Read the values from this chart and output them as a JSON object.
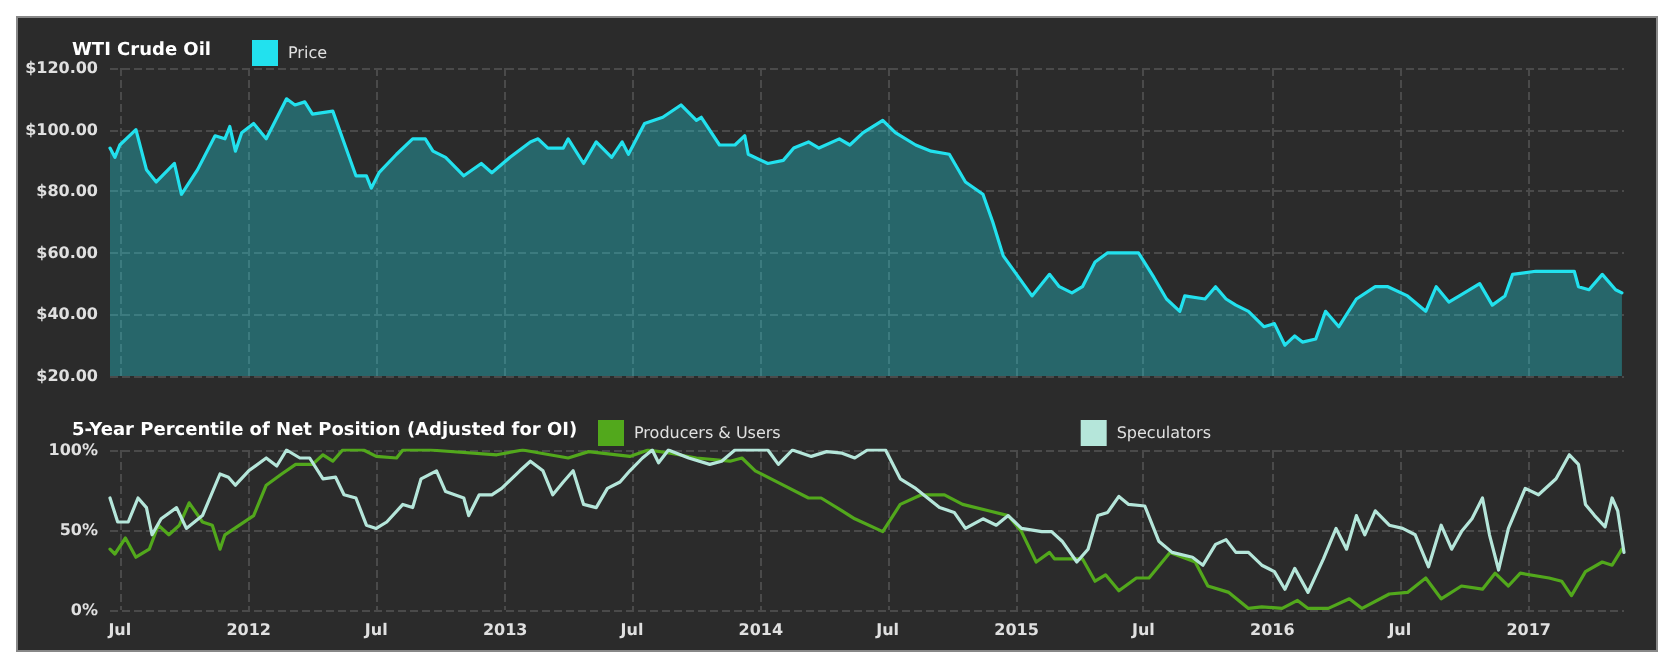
{
  "chart_data": [
    {
      "type": "area",
      "title": "WTI Crude Oil",
      "legend": "top left",
      "grid": true,
      "marker": "none",
      "tick_labels": "y",
      "xlim": [
        "2011-06-17",
        "2017-05-17"
      ],
      "xticks": [
        {
          "value": "2011-07-01",
          "label": null
        },
        {
          "value": "2012-01-01",
          "label": null
        },
        {
          "value": "2012-07-01",
          "label": null
        },
        {
          "value": "2013-01-01",
          "label": null
        },
        {
          "value": "2013-07-01",
          "label": null
        },
        {
          "value": "2014-01-01",
          "label": null
        },
        {
          "value": "2014-07-01",
          "label": null
        },
        {
          "value": "2015-01-01",
          "label": null
        },
        {
          "value": "2015-07-01",
          "label": null
        },
        {
          "value": "2016-01-01",
          "label": null
        },
        {
          "value": "2016-07-01",
          "label": null
        },
        {
          "value": "2017-01-01",
          "label": null
        }
      ],
      "ylim": [
        20,
        120
      ],
      "yticks": [
        {
          "value": 20,
          "label": "$20.00"
        },
        {
          "value": 40,
          "label": "$40.00"
        },
        {
          "value": 60,
          "label": "$60.00"
        },
        {
          "value": 80,
          "label": "$80.00"
        },
        {
          "value": 100,
          "label": "$100.00"
        },
        {
          "value": 120,
          "label": "$120.00"
        }
      ],
      "series": [
        {
          "name": "Price",
          "color": "#22e1ee",
          "x": [
            "2011-06-17",
            "2011-06-24",
            "2011-07-01",
            "2011-07-24",
            "2011-08-08",
            "2011-08-22",
            "2011-09-17",
            "2011-09-27",
            "2011-10-20",
            "2011-11-14",
            "2011-11-28",
            "2011-12-05",
            "2011-12-13",
            "2011-12-22",
            "2012-01-08",
            "2012-01-26",
            "2012-02-24",
            "2012-03-07",
            "2012-03-21",
            "2012-04-01",
            "2012-04-30",
            "2012-05-22",
            "2012-06-02",
            "2012-06-17",
            "2012-06-24",
            "2012-07-05",
            "2012-07-30",
            "2012-08-22",
            "2012-09-09",
            "2012-09-20",
            "2012-10-08",
            "2012-11-03",
            "2012-11-28",
            "2012-12-13",
            "2013-01-08",
            "2013-02-06",
            "2013-02-17",
            "2013-03-03",
            "2013-03-25",
            "2013-04-01",
            "2013-04-23",
            "2013-05-11",
            "2013-06-02",
            "2013-06-17",
            "2013-06-26",
            "2013-07-19",
            "2013-08-14",
            "2013-09-09",
            "2013-10-01",
            "2013-10-08",
            "2013-11-03",
            "2013-11-25",
            "2013-12-09",
            "2013-12-14",
            "2014-01-11",
            "2014-02-02",
            "2014-02-17",
            "2014-03-10",
            "2014-03-25",
            "2014-04-23",
            "2014-05-08",
            "2014-05-27",
            "2014-06-24",
            "2014-07-12",
            "2014-08-10",
            "2014-09-01",
            "2014-09-27",
            "2014-10-20",
            "2014-11-14",
            "2014-11-28",
            "2014-12-13",
            "2015-01-01",
            "2015-01-23",
            "2015-02-17",
            "2015-03-03",
            "2015-03-21",
            "2015-04-05",
            "2015-04-23",
            "2015-05-11",
            "2015-06-24",
            "2015-07-16",
            "2015-08-03",
            "2015-08-22",
            "2015-08-29",
            "2015-09-27",
            "2015-10-12",
            "2015-10-27",
            "2015-11-10",
            "2015-11-28",
            "2015-12-20",
            "2016-01-04",
            "2016-01-19",
            "2016-02-02",
            "2016-02-13",
            "2016-03-03",
            "2016-03-17",
            "2016-04-05",
            "2016-04-30",
            "2016-05-27",
            "2016-06-14",
            "2016-07-12",
            "2016-08-07",
            "2016-08-22",
            "2016-09-09",
            "2016-09-24",
            "2016-10-23",
            "2016-11-10",
            "2016-11-28",
            "2016-12-09",
            "2017-01-11",
            "2017-02-13",
            "2017-03-07",
            "2017-03-13",
            "2017-03-28",
            "2017-04-16",
            "2017-05-05",
            "2017-05-14"
          ],
          "values": [
            94,
            91,
            95,
            100,
            87,
            83,
            89,
            79,
            87,
            98,
            97,
            101,
            93,
            99,
            102,
            97,
            110,
            108,
            109,
            105,
            106,
            92,
            85,
            85,
            81,
            86,
            92,
            97,
            97,
            93,
            91,
            85,
            89,
            86,
            91,
            96,
            97,
            94,
            94,
            97,
            89,
            96,
            91,
            96,
            92,
            102,
            104,
            108,
            103,
            104,
            95,
            95,
            98,
            92,
            89,
            90,
            94,
            96,
            94,
            97,
            95,
            99,
            103,
            99,
            95,
            93,
            92,
            83,
            79,
            70,
            59,
            53,
            46,
            53,
            49,
            47,
            49,
            57,
            60,
            60,
            52,
            45,
            41,
            46,
            45,
            49,
            45,
            43,
            41,
            36,
            37,
            30,
            33,
            31,
            32,
            41,
            36,
            45,
            49,
            49,
            46,
            41,
            49,
            44,
            46,
            50,
            43,
            46,
            53,
            54,
            54,
            54,
            49,
            48,
            53,
            48,
            47
          ]
        }
      ]
    },
    {
      "type": "line",
      "title": "5-Year Percentile of Net Position (Adjusted for OI)",
      "legend": "top left",
      "grid": true,
      "marker": "none",
      "xlim": [
        "2011-06-17",
        "2017-05-17"
      ],
      "xticks": [
        {
          "value": "2011-07-01",
          "label": "Jul"
        },
        {
          "value": "2012-01-01",
          "label": "2012"
        },
        {
          "value": "2012-07-01",
          "label": "Jul"
        },
        {
          "value": "2013-01-01",
          "label": "2013"
        },
        {
          "value": "2013-07-01",
          "label": "Jul"
        },
        {
          "value": "2014-01-01",
          "label": "2014"
        },
        {
          "value": "2014-07-01",
          "label": "Jul"
        },
        {
          "value": "2015-01-01",
          "label": "2015"
        },
        {
          "value": "2015-07-01",
          "label": "Jul"
        },
        {
          "value": "2016-01-01",
          "label": "2016"
        },
        {
          "value": "2016-07-01",
          "label": "Jul"
        },
        {
          "value": "2017-01-01",
          "label": "2017"
        }
      ],
      "ylim": [
        0,
        100
      ],
      "yticks": [
        {
          "value": 0,
          "label": "0%"
        },
        {
          "value": 50,
          "label": "50%"
        },
        {
          "value": 100,
          "label": "100%"
        }
      ],
      "series": [
        {
          "name": "Producers & Users",
          "color": "#52a81c",
          "x": [
            "2011-06-17",
            "2011-06-24",
            "2011-07-09",
            "2011-07-24",
            "2011-08-12",
            "2011-08-25",
            "2011-09-09",
            "2011-09-24",
            "2011-10-08",
            "2011-10-27",
            "2011-11-10",
            "2011-11-21",
            "2011-11-28",
            "2011-12-22",
            "2012-01-08",
            "2012-01-26",
            "2012-02-17",
            "2012-03-08",
            "2012-04-01",
            "2012-04-16",
            "2012-04-30",
            "2012-05-14",
            "2012-06-13",
            "2012-07-01",
            "2012-07-30",
            "2012-08-08",
            "2012-09-16",
            "2012-12-20",
            "2013-01-26",
            "2013-04-01",
            "2013-04-30",
            "2013-06-28",
            "2013-07-24",
            "2013-08-25",
            "2013-10-01",
            "2013-11-18",
            "2013-12-05",
            "2013-12-24",
            "2014-02-02",
            "2014-03-10",
            "2014-03-28",
            "2014-04-27",
            "2014-05-15",
            "2014-06-24",
            "2014-07-19",
            "2014-08-18",
            "2014-09-20",
            "2014-10-16",
            "2014-11-22",
            "2014-12-20",
            "2015-01-08",
            "2015-01-29",
            "2015-02-17",
            "2015-02-24",
            "2015-04-05",
            "2015-04-23",
            "2015-05-08",
            "2015-05-27",
            "2015-06-21",
            "2015-07-09",
            "2015-08-08",
            "2015-09-13",
            "2015-10-01",
            "2015-10-31",
            "2015-11-28",
            "2015-12-17",
            "2016-01-15",
            "2016-02-06",
            "2016-02-21",
            "2016-03-21",
            "2016-04-20",
            "2016-05-08",
            "2016-06-16",
            "2016-07-12",
            "2016-08-07",
            "2016-08-29",
            "2016-09-27",
            "2016-10-27",
            "2016-11-14",
            "2016-12-03",
            "2016-12-20",
            "2017-01-30",
            "2017-02-17",
            "2017-03-03",
            "2017-03-23",
            "2017-04-16",
            "2017-04-30",
            "2017-05-14"
          ],
          "values": [
            38,
            35,
            45,
            33,
            38,
            53,
            47,
            53,
            67,
            55,
            53,
            38,
            47,
            54,
            59,
            78,
            85,
            91,
            91,
            97,
            93,
            100,
            100,
            96,
            95,
            100,
            100,
            97,
            100,
            95,
            99,
            96,
            100,
            98,
            95,
            93,
            95,
            87,
            78,
            70,
            70,
            62,
            57,
            49,
            66,
            72,
            72,
            66,
            62,
            59,
            49,
            30,
            36,
            32,
            32,
            18,
            22,
            12,
            20,
            20,
            36,
            30,
            15,
            11,
            1,
            2,
            1,
            6,
            1,
            1,
            7,
            1,
            10,
            11,
            20,
            7,
            15,
            13,
            23,
            15,
            23,
            20,
            18,
            9,
            24,
            30,
            28,
            38
          ]
        },
        {
          "name": "Speculators",
          "color": "#b5e6da",
          "x": [
            "2011-06-17",
            "2011-06-28",
            "2011-07-13",
            "2011-07-27",
            "2011-08-08",
            "2011-08-16",
            "2011-08-29",
            "2011-09-20",
            "2011-10-04",
            "2011-10-27",
            "2011-11-21",
            "2011-12-03",
            "2011-12-13",
            "2012-01-01",
            "2012-01-26",
            "2012-02-10",
            "2012-02-24",
            "2012-03-14",
            "2012-03-28",
            "2012-04-16",
            "2012-05-04",
            "2012-05-16",
            "2012-06-02",
            "2012-06-17",
            "2012-07-01",
            "2012-07-16",
            "2012-08-08",
            "2012-08-22",
            "2012-09-03",
            "2012-09-25",
            "2012-10-08",
            "2012-11-03",
            "2012-11-10",
            "2012-11-25",
            "2012-12-13",
            "2012-12-27",
            "2013-01-22",
            "2013-02-06",
            "2013-02-24",
            "2013-03-10",
            "2013-03-25",
            "2013-04-08",
            "2013-04-23",
            "2013-05-11",
            "2013-05-27",
            "2013-06-14",
            "2013-06-28",
            "2013-07-16",
            "2013-07-30",
            "2013-08-08",
            "2013-08-22",
            "2013-09-20",
            "2013-10-20",
            "2013-11-06",
            "2013-11-25",
            "2014-01-11",
            "2014-01-26",
            "2014-02-15",
            "2014-03-14",
            "2014-04-05",
            "2014-04-27",
            "2014-05-15",
            "2014-06-02",
            "2014-06-28",
            "2014-07-19",
            "2014-08-10",
            "2014-09-13",
            "2014-10-04",
            "2014-10-20",
            "2014-11-14",
            "2014-12-03",
            "2014-12-20",
            "2015-01-08",
            "2015-02-06",
            "2015-02-20",
            "2015-03-07",
            "2015-03-28",
            "2015-04-13",
            "2015-04-27",
            "2015-05-11",
            "2015-05-27",
            "2015-06-10",
            "2015-07-03",
            "2015-07-23",
            "2015-08-11",
            "2015-09-09",
            "2015-09-24",
            "2015-10-12",
            "2015-10-27",
            "2015-11-10",
            "2015-11-28",
            "2015-12-17",
            "2016-01-04",
            "2016-01-19",
            "2016-02-02",
            "2016-02-21",
            "2016-03-14",
            "2016-04-01",
            "2016-04-16",
            "2016-04-30",
            "2016-05-12",
            "2016-05-27",
            "2016-06-16",
            "2016-07-05",
            "2016-07-23",
            "2016-08-11",
            "2016-08-29",
            "2016-09-13",
            "2016-09-27",
            "2016-10-12",
            "2016-10-27",
            "2016-11-06",
            "2016-11-19",
            "2016-12-03",
            "2016-12-27",
            "2017-01-15",
            "2017-02-09",
            "2017-02-28",
            "2017-03-13",
            "2017-03-23",
            "2017-04-05",
            "2017-04-20",
            "2017-04-30",
            "2017-05-08",
            "2017-05-17"
          ],
          "values": [
            70,
            55,
            55,
            70,
            64,
            47,
            57,
            64,
            51,
            59,
            85,
            83,
            78,
            87,
            95,
            90,
            100,
            95,
            95,
            82,
            83,
            72,
            70,
            53,
            51,
            55,
            66,
            64,
            82,
            87,
            74,
            70,
            59,
            72,
            72,
            76,
            87,
            93,
            87,
            72,
            80,
            87,
            66,
            64,
            76,
            80,
            87,
            95,
            100,
            92,
            100,
            95,
            91,
            93,
            100,
            100,
            91,
            100,
            96,
            99,
            98,
            95,
            100,
            100,
            82,
            76,
            64,
            61,
            51,
            57,
            53,
            59,
            51,
            49,
            49,
            43,
            30,
            38,
            59,
            61,
            71,
            66,
            65,
            43,
            36,
            33,
            28,
            41,
            44,
            36,
            36,
            28,
            24,
            13,
            26,
            11,
            32,
            51,
            38,
            59,
            47,
            62,
            53,
            51,
            47,
            27,
            53,
            38,
            49,
            57,
            70,
            47,
            25,
            51,
            76,
            72,
            82,
            97,
            91,
            66,
            59,
            52,
            70,
            62,
            36
          ]
        }
      ]
    }
  ]
}
